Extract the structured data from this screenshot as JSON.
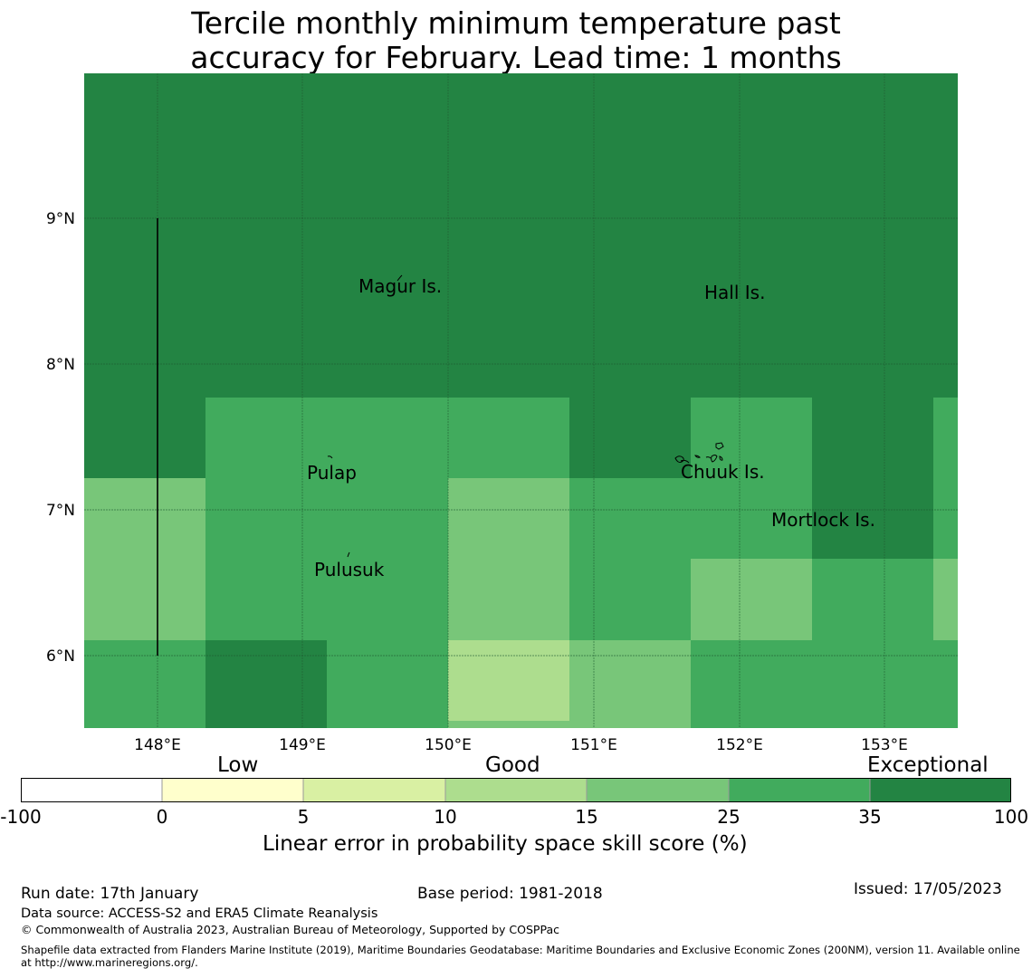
{
  "title": {
    "line1": "Tercile monthly minimum temperature past",
    "line2": "accuracy for February. Lead time: 1 months"
  },
  "map": {
    "x_ticks": [
      "148°E",
      "149°E",
      "150°E",
      "151°E",
      "152°E",
      "153°E"
    ],
    "y_ticks": [
      "9°N",
      "8°N",
      "7°N",
      "6°N"
    ],
    "places": [
      "Magur Is.",
      "Hall Is.",
      "Pulap",
      "Chuuk Is.",
      "Mortlock Is.",
      "Pulusuk"
    ]
  },
  "colorbar": {
    "categories": [
      "Low",
      "Good",
      "Exceptional"
    ],
    "ticks": [
      "-100",
      "0",
      "5",
      "10",
      "15",
      "25",
      "35",
      "100"
    ],
    "colors": [
      "#ffffff",
      "#ffffcc",
      "#d9f0a3",
      "#addd8e",
      "#78c679",
      "#41ab5d",
      "#238443"
    ],
    "xlabel": "Linear error in probability space skill score (%)"
  },
  "footer": {
    "run_date": "Run date: 17th January",
    "base_period": "Base period: 1981-2018",
    "issued": "Issued: 17/05/2023",
    "data_source": "Data source: ACCESS-S2 and ERA5 Climate Reanalysis",
    "copyright": "© Commonwealth of Australia 2023, Australian Bureau of Meteorology, Supported by COSPPac",
    "shapefile": "Shapefile data extracted from Flanders Marine Institute (2019), Maritime Boundaries Geodatabase: Maritime Boundaries and Exclusive Economic Zones (200NM), version 11. Available online at http://www.marineregions.org/."
  }
}
